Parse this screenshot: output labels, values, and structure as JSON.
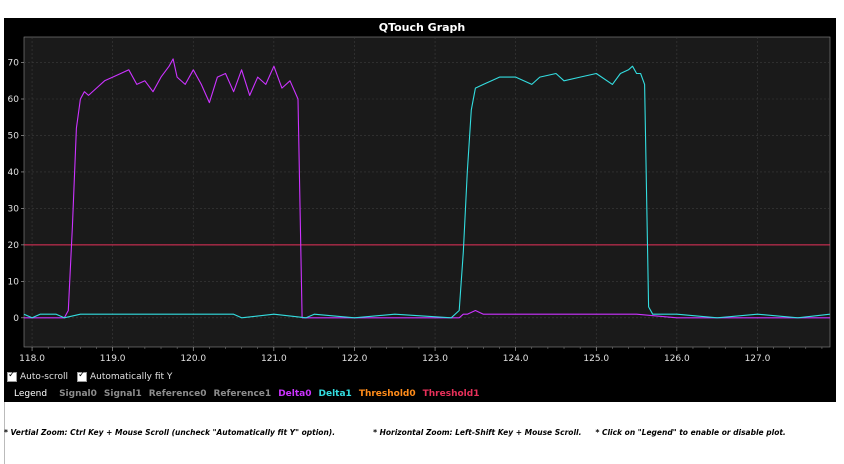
{
  "chart_data": {
    "type": "line",
    "title": "QTouch Graph",
    "xlim": [
      117.9,
      127.9
    ],
    "ylim": [
      -8,
      77
    ],
    "x_ticks": [
      118.0,
      119.0,
      120.0,
      121.0,
      122.0,
      123.0,
      124.0,
      125.0,
      126.0,
      127.0
    ],
    "x_tick_labels": [
      "118.0",
      "119.0",
      "120.0",
      "121.0",
      "122.0",
      "123.0",
      "124.0",
      "125.0",
      "126.0",
      "127.0"
    ],
    "y_ticks": [
      0,
      10,
      20,
      30,
      40,
      50,
      60,
      70
    ],
    "y_tick_labels": [
      "0",
      "10",
      "20",
      "30",
      "40",
      "50",
      "60",
      "70"
    ],
    "grid": true,
    "threshold_line": {
      "name": "Threshold1",
      "value": 20,
      "color": "#e8305a"
    },
    "series": [
      {
        "name": "Delta0",
        "color": "#cc33ff",
        "x": [
          117.9,
          118.4,
          118.45,
          118.5,
          118.55,
          118.6,
          118.65,
          118.7,
          118.8,
          118.9,
          119.0,
          119.1,
          119.2,
          119.3,
          119.4,
          119.5,
          119.6,
          119.7,
          119.75,
          119.8,
          119.9,
          120.0,
          120.1,
          120.2,
          120.3,
          120.4,
          120.5,
          120.6,
          120.7,
          120.8,
          120.9,
          121.0,
          121.1,
          121.2,
          121.3,
          121.35,
          121.4,
          123.3,
          123.35,
          123.4,
          123.5,
          123.6,
          124.0,
          124.5,
          125.0,
          125.5,
          126.0,
          127.9
        ],
        "y": [
          0,
          0,
          2,
          25,
          52,
          60,
          62,
          61,
          63,
          65,
          66,
          67,
          68,
          64,
          65,
          62,
          66,
          69,
          71,
          66,
          64,
          68,
          64,
          59,
          66,
          67,
          62,
          68,
          61,
          66,
          64,
          69,
          63,
          65,
          60,
          0,
          0,
          0,
          1,
          1,
          2,
          1,
          1,
          1,
          1,
          1,
          0,
          0
        ]
      },
      {
        "name": "Delta1",
        "color": "#33dde0",
        "x": [
          117.9,
          118.0,
          118.1,
          118.3,
          118.4,
          118.6,
          120.5,
          120.6,
          121.0,
          121.4,
          121.5,
          122.0,
          122.5,
          123.2,
          123.3,
          123.35,
          123.4,
          123.45,
          123.5,
          123.6,
          123.7,
          123.8,
          124.0,
          124.2,
          124.3,
          124.5,
          124.6,
          124.8,
          125.0,
          125.2,
          125.3,
          125.4,
          125.45,
          125.5,
          125.55,
          125.6,
          125.65,
          125.7,
          126.0,
          126.5,
          127.0,
          127.5,
          127.9
        ],
        "y": [
          1,
          0,
          1,
          1,
          0,
          1,
          1,
          0,
          1,
          0,
          1,
          0,
          1,
          0,
          2,
          18,
          40,
          57,
          63,
          64,
          65,
          66,
          66,
          64,
          66,
          67,
          65,
          66,
          67,
          64,
          67,
          68,
          69,
          67,
          67,
          64,
          3,
          1,
          1,
          0,
          1,
          0,
          1
        ]
      }
    ]
  },
  "controls": {
    "auto_scroll": {
      "label": "Auto-scroll",
      "checked": true
    },
    "auto_fit_y": {
      "label": "Automatically fit Y",
      "checked": true
    }
  },
  "legend": {
    "title": "Legend",
    "items": [
      {
        "label": "Signal0",
        "color": "#8c8c8c"
      },
      {
        "label": "Signal1",
        "color": "#8c8c8c"
      },
      {
        "label": "Reference0",
        "color": "#8c8c8c"
      },
      {
        "label": "Reference1",
        "color": "#8c8c8c"
      },
      {
        "label": "Delta0",
        "color": "#cc33ff"
      },
      {
        "label": "Delta1",
        "color": "#33dde0"
      },
      {
        "label": "Threshold0",
        "color": "#ff8c1a"
      },
      {
        "label": "Threshold1",
        "color": "#e8305a"
      }
    ]
  },
  "hints": {
    "vertical_zoom": "* Vertial Zoom: Ctrl Key + Mouse Scroll (uncheck \"Automatically fit Y\" option).",
    "horizontal_zoom": "* Horizontal Zoom: Left-Shift Key + Mouse Scroll.",
    "legend_toggle": "* Click on \"Legend\" to enable or disable plot."
  }
}
